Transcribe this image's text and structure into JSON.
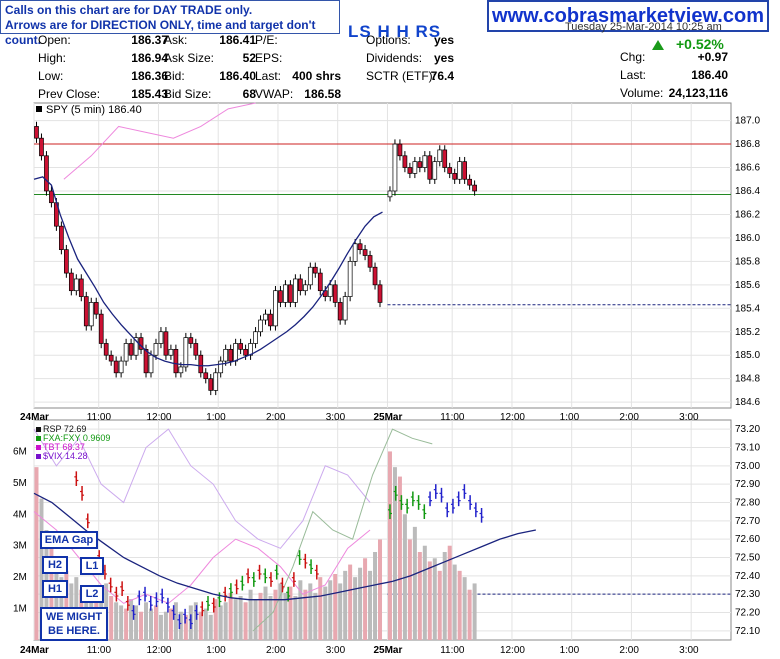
{
  "notice": {
    "line1": "Calls on this chart are for DAY TRADE only.",
    "line2": "Arrows are for DIRECTION ONLY, time and target don't count."
  },
  "site": {
    "url": "www.cobrasmarketview.com"
  },
  "header": {
    "ticker_label": "LS H H RS",
    "date_text": "Tuesday  25-Mar-2014  10:25 am",
    "change_pct": "+0.52%",
    "arrow_icon": "up-arrow-icon",
    "quote_col1": [
      {
        "label": "Open:",
        "value": "186.37"
      },
      {
        "label": "High:",
        "value": "186.94"
      },
      {
        "label": "Low:",
        "value": "186.36"
      },
      {
        "label": "Prev Close:",
        "value": "185.43"
      }
    ],
    "quote_col2": [
      {
        "label": "Ask:",
        "value": "186.41"
      },
      {
        "label": "Ask Size:",
        "value": "52"
      },
      {
        "label": "Bid:",
        "value": "186.40"
      },
      {
        "label": "Bid Size:",
        "value": "68"
      }
    ],
    "quote_col3": [
      {
        "label": "P/E:",
        "value": ""
      },
      {
        "label": "EPS:",
        "value": ""
      },
      {
        "label": "Last:",
        "value": "400 shrs"
      },
      {
        "label": "VWAP:",
        "value": "186.58"
      }
    ],
    "quote_col4": [
      {
        "label": "Options:",
        "value": "yes"
      },
      {
        "label": "Dividends:",
        "value": "yes"
      },
      {
        "label": "SCTR (ETF):",
        "value": "76.4"
      },
      {
        "label": "",
        "value": ""
      }
    ],
    "quote_col5": [
      {
        "label": "Chg:",
        "value": "+0.97"
      },
      {
        "label": "Last:",
        "value": "186.40"
      },
      {
        "label": "Volume:",
        "value": "24,123,116"
      }
    ]
  },
  "colors": {
    "up_candle": "#ffffff",
    "down_candle": "#cc1133",
    "ema": "#1a237e",
    "rsp_green": "#119911",
    "rsp_blue": "#2222cc",
    "rsp_red": "#cc1111",
    "fxa": "#99bb99",
    "tbt": "#ee88dd",
    "vix": "#ccaaee",
    "volume_up": "#bbbbbb",
    "volume_down": "#e8a8b0",
    "level_red": "#cc2222",
    "level_green": "#228822",
    "level_blue": "#1a237e"
  },
  "annotations": {
    "ema_gap": "EMA Gap",
    "h2": "H2",
    "h1": "H1",
    "l1": "L1",
    "l2": "L2",
    "might_line1": "WE MIGHT",
    "might_line2": "BE HERE."
  },
  "chart_data": [
    {
      "type": "candlestick",
      "legend": "SPY (5 min) 186.40",
      "x_ticks": [
        "24Mar",
        "11:00",
        "12:00",
        "1:00",
        "2:00",
        "3:00",
        "25Mar",
        "11:00",
        "12:00",
        "1:00",
        "2:00",
        "3:00"
      ],
      "x_tick_slots": [
        0,
        13,
        25,
        37,
        49,
        61,
        71,
        84,
        96,
        108,
        120,
        132
      ],
      "x_slots_total": 140,
      "y_ticks": [
        "187.0",
        "186.8",
        "186.6",
        "186.4",
        "186.2",
        "186.0",
        "185.8",
        "185.6",
        "185.4",
        "185.2",
        "185.0",
        "184.8",
        "184.6"
      ],
      "ylim": [
        184.55,
        187.15
      ],
      "grid": true,
      "horizontal_levels": [
        {
          "value": 186.8,
          "color": "#cc2222",
          "style": "solid",
          "from_slot": 0
        },
        {
          "value": 186.37,
          "color": "#228822",
          "style": "solid",
          "from_slot": 0
        },
        {
          "value": 185.43,
          "color": "#1a237e",
          "style": "dashed",
          "from_slot": 71
        }
      ],
      "close_series": [
        186.85,
        186.7,
        186.4,
        186.3,
        186.1,
        185.9,
        185.7,
        185.55,
        185.65,
        185.5,
        185.25,
        185.45,
        185.35,
        185.1,
        185.0,
        184.95,
        184.85,
        184.95,
        185.1,
        185.0,
        185.15,
        185.05,
        184.85,
        185.0,
        185.1,
        185.2,
        185.0,
        185.05,
        184.85,
        184.9,
        185.15,
        185.1,
        185.0,
        184.85,
        184.8,
        184.7,
        184.85,
        184.95,
        185.05,
        184.95,
        185.1,
        185.05,
        185.0,
        185.1,
        185.2,
        185.3,
        185.35,
        185.25,
        185.55,
        185.45,
        185.6,
        185.45,
        185.65,
        185.55,
        185.6,
        185.75,
        185.7,
        185.55,
        185.5,
        185.6,
        185.45,
        185.3,
        185.5,
        185.8,
        185.95,
        185.9,
        185.85,
        185.75,
        185.6,
        185.45
      ],
      "ema_series": [
        186.5,
        186.52,
        186.45,
        186.2,
        186.0,
        185.82,
        185.7,
        185.58,
        185.45,
        185.35,
        185.26,
        185.18,
        185.1,
        185.03,
        184.98,
        184.95,
        184.93,
        184.92,
        184.92,
        184.91,
        184.91,
        184.92,
        184.93,
        184.95,
        184.98,
        185.01,
        185.05,
        185.1,
        185.15,
        185.2,
        185.26,
        185.33,
        185.41,
        185.51,
        185.62,
        185.74,
        185.87,
        185.99,
        186.1,
        186.18,
        186.22
      ],
      "ema_start_slot": 0,
      "ema_step": 1.75,
      "day2_closes": [
        186.4,
        186.8,
        186.7,
        186.6,
        186.55,
        186.65,
        186.6,
        186.7,
        186.5,
        186.65,
        186.75,
        186.6,
        186.55,
        186.5,
        186.65,
        186.5,
        186.45,
        186.4
      ],
      "tbt_overlay": [
        186.5,
        186.7,
        186.95,
        186.9,
        186.85,
        186.95,
        187.1,
        187.15
      ]
    },
    {
      "type": "line_volume",
      "legend": [
        {
          "name": "RSP 72.69",
          "color": "#111111"
        },
        {
          "name": "FXA:FXY 0.9609",
          "color": "#119911"
        },
        {
          "name": "TBT 68.37",
          "color": "#cc11cc"
        },
        {
          "name": "$VIX 14.28",
          "color": "#7711cc"
        }
      ],
      "y_ticks_right": [
        "73.20",
        "73.10",
        "73.00",
        "72.90",
        "72.80",
        "72.70",
        "72.60",
        "72.50",
        "72.40",
        "72.30",
        "72.20",
        "72.10"
      ],
      "ylim_right": [
        72.05,
        73.25
      ],
      "y_ticks_left": [
        "6M",
        "5M",
        "4M",
        "3M",
        "2M",
        "1M"
      ],
      "volume_max": 7,
      "horizontal_levels": [
        {
          "value": 72.3,
          "color": "#1a237e",
          "style": "dashed",
          "from_slot": 71
        }
      ],
      "rsp_series": [
        72.93,
        72.85,
        72.7,
        72.6,
        72.5,
        72.42,
        72.35,
        72.3,
        72.33,
        72.25,
        72.2,
        72.28,
        72.3,
        72.25,
        72.27,
        72.29,
        72.24,
        72.2,
        72.15,
        72.18,
        72.15,
        72.2,
        72.22,
        72.25,
        72.24,
        72.27,
        72.3,
        72.32,
        72.34,
        72.36,
        72.4,
        72.38,
        72.42,
        72.4,
        72.38,
        72.42,
        72.35,
        72.3,
        72.38,
        72.5,
        72.48,
        72.45,
        72.42
      ],
      "rsp_day2": [
        72.75,
        72.85,
        72.8,
        72.78,
        72.82,
        72.8,
        72.75,
        72.82,
        72.86,
        72.84,
        72.76,
        72.78,
        72.82,
        72.86,
        72.8,
        72.76,
        72.73
      ],
      "ema_series": [
        72.85,
        72.8,
        72.72,
        72.64,
        72.57,
        72.5,
        72.45,
        72.4,
        72.36,
        72.33,
        72.3,
        72.28,
        72.27,
        72.27,
        72.27,
        72.28,
        72.29,
        72.31,
        72.33,
        72.35,
        72.37,
        72.4,
        72.44,
        72.48,
        72.52,
        72.56,
        72.6,
        72.63,
        72.65
      ],
      "volume_day1": [
        5.5,
        4.5,
        3.5,
        3.0,
        2.5,
        2.0,
        2.2,
        1.8,
        2.0,
        1.6,
        1.5,
        1.2,
        1.5,
        1.3,
        1.8,
        1.4,
        1.2,
        1.1,
        1.0,
        1.3,
        1.1,
        0.9,
        1.2,
        1.0,
        1.1,
        0.8,
        0.9,
        1.0,
        1.2,
        0.9,
        0.8,
        1.1,
        1.2,
        0.9,
        1.0,
        0.8,
        1.3,
        1.1,
        1.2,
        1.5,
        1.3,
        1.4,
        1.2,
        1.6,
        1.3,
        1.5,
        1.7,
        1.4,
        1.6,
        1.8,
        1.5,
        1.7,
        1.4,
        1.9,
        1.6,
        1.8,
        1.5,
        2.0,
        1.7,
        1.9,
        2.1,
        1.8,
        2.2,
        2.4,
        2.0,
        2.3,
        2.6,
        2.2,
        2.8,
        3.2
      ],
      "volume_day2": [
        6.0,
        5.5,
        5.2,
        4.0,
        3.2,
        3.6,
        2.8,
        3.0,
        2.5,
        2.6,
        2.2,
        2.8,
        3.0,
        2.4,
        2.2,
        2.0,
        1.6,
        1.8
      ]
    }
  ]
}
